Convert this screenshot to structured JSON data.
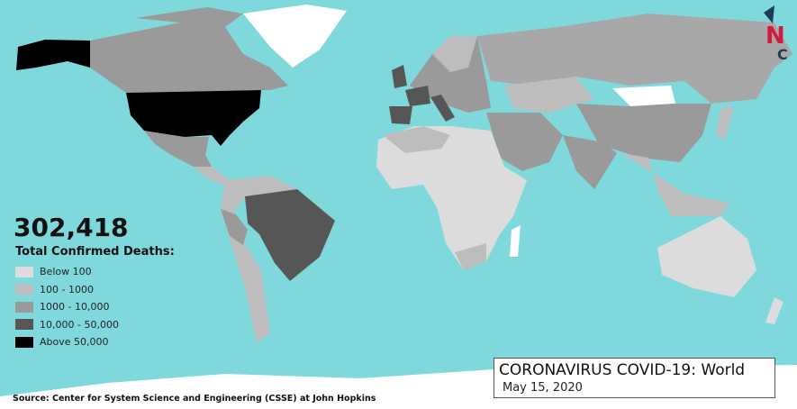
{
  "total_deaths": "302,418",
  "legend": {
    "title": "Total Confirmed Deaths:",
    "items": [
      {
        "label": "Below 100",
        "color": "#dcdcdc"
      },
      {
        "label": "100 - 1000",
        "color": "#bdbdbd"
      },
      {
        "label": "1000 - 10,000",
        "color": "#9a9a9a"
      },
      {
        "label": "10,000 - 50,000",
        "color": "#565656"
      },
      {
        "label": "Above 50,000",
        "color": "#000000"
      }
    ]
  },
  "title": "CORONAVIRUS COVID-19: World",
  "date": "May 15, 2020",
  "source": "Source: Center for System Science and Engineering (CSSE) at John Hopkins",
  "logo": {
    "letters": "NC",
    "color": "#d4183f"
  },
  "map": {
    "ocean_color": "#7fd9dc",
    "no_data_color": "#ffffff"
  }
}
